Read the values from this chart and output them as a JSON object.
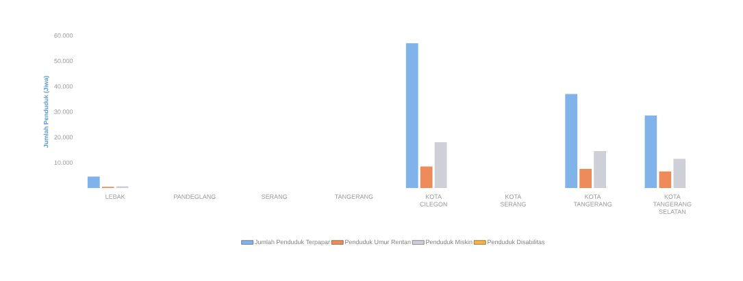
{
  "chart_data": {
    "type": "bar",
    "ylabel": "Jumlah Penduduk (Jiwa)",
    "categories": [
      "LEBAK",
      "PANDEGLANG",
      "SERANG",
      "TANGERANG",
      "KOTA CILEGON",
      "KOTA SERANG",
      "KOTA TANGERANG",
      "KOTA TANGERANG SELATAN"
    ],
    "series": [
      {
        "name": "Jumlah Penduduk Terpapar",
        "color": "#7fb3ea",
        "values": [
          4500,
          null,
          null,
          null,
          57000,
          null,
          37000,
          28500
        ]
      },
      {
        "name": "Penduduk Umur Rentan",
        "color": "#ed8c5a",
        "values": [
          500,
          null,
          null,
          null,
          8500,
          null,
          7500,
          6500
        ]
      },
      {
        "name": "Penduduk Miskin",
        "color": "#cfcfd8",
        "values": [
          700,
          null,
          null,
          null,
          18000,
          null,
          14500,
          11500
        ]
      },
      {
        "name": "Penduduk Disabilitas",
        "color": "#f5b342",
        "values": [
          null,
          null,
          null,
          null,
          null,
          null,
          null,
          null
        ]
      }
    ],
    "ylim": [
      0,
      60000
    ],
    "yticks": [
      {
        "value": 10000,
        "label": "10.000"
      },
      {
        "value": 20000,
        "label": "20.000"
      },
      {
        "value": 30000,
        "label": "30.000"
      },
      {
        "value": 40000,
        "label": "40.000"
      },
      {
        "value": 50000,
        "label": "50.000"
      },
      {
        "value": 60000,
        "label": "60.000"
      }
    ],
    "legend": "bottom"
  }
}
